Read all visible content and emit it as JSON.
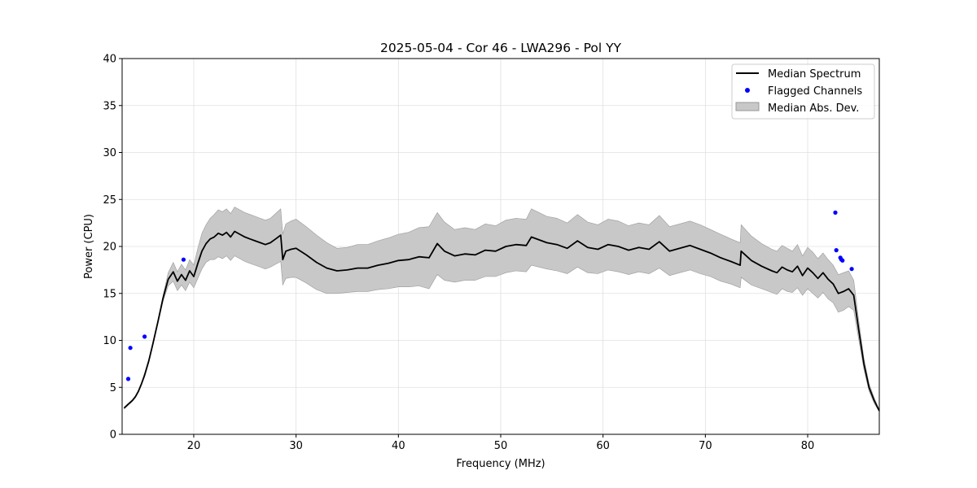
{
  "chart_data": {
    "type": "line",
    "title": "2025-05-04 - Cor 46 - LWA296 - Pol YY",
    "xlabel": "Frequency (MHz)",
    "ylabel": "Power (CPU)",
    "xlim": [
      13.0,
      87.0
    ],
    "ylim": [
      0,
      40
    ],
    "x_ticks": [
      20,
      30,
      40,
      50,
      60,
      70,
      80
    ],
    "x_tick_labels": [
      "20",
      "30",
      "40",
      "50",
      "60",
      "70",
      "80"
    ],
    "y_ticks": [
      0,
      5,
      10,
      15,
      20,
      25,
      30,
      35,
      40
    ],
    "y_tick_labels": [
      "0",
      "5",
      "10",
      "15",
      "20",
      "25",
      "30",
      "35",
      "40"
    ],
    "grid": true,
    "legend_position": "upper right",
    "colors": {
      "median": "#000000",
      "flagged": "#0000ff",
      "band": "#c8c8c8",
      "band_edge": "#999999",
      "grid": "#e0e0e0"
    },
    "series": [
      {
        "name": "Median Spectrum",
        "kind": "line",
        "x": [
          13.2,
          13.4,
          13.6,
          13.8,
          14.0,
          14.3,
          14.6,
          14.9,
          15.2,
          15.6,
          16.0,
          16.5,
          17.0,
          17.5,
          18.0,
          18.4,
          18.8,
          19.2,
          19.6,
          20.0,
          20.4,
          20.8,
          21.2,
          21.6,
          22.0,
          22.4,
          22.8,
          23.2,
          23.6,
          24.0,
          24.5,
          25.0,
          25.5,
          26.0,
          26.5,
          27.0,
          27.5,
          28.0,
          28.5,
          28.7,
          29.0,
          29.5,
          30.0,
          31.0,
          32.0,
          33.0,
          34.0,
          35.0,
          36.0,
          37.0,
          38.0,
          39.0,
          40.0,
          41.0,
          42.0,
          43.0,
          43.8,
          44.5,
          45.5,
          46.5,
          47.5,
          48.5,
          49.5,
          50.5,
          51.5,
          52.5,
          53.0,
          54.5,
          55.5,
          56.5,
          57.5,
          58.5,
          59.5,
          60.5,
          61.5,
          62.5,
          63.5,
          64.5,
          65.5,
          66.5,
          67.5,
          68.5,
          69.5,
          70.5,
          71.5,
          72.5,
          73.4,
          73.5,
          74.5,
          75.5,
          76.5,
          77.0,
          77.5,
          78.0,
          78.5,
          79.0,
          79.5,
          80.0,
          80.5,
          81.0,
          81.5,
          82.0,
          82.5,
          83.0,
          83.5,
          84.0,
          84.5,
          85.0,
          85.5,
          86.0,
          86.5,
          87.0
        ],
        "values": [
          2.8,
          3.0,
          3.2,
          3.4,
          3.6,
          4.0,
          4.6,
          5.4,
          6.3,
          7.8,
          9.6,
          12.0,
          14.5,
          16.5,
          17.3,
          16.3,
          17.0,
          16.4,
          17.4,
          16.8,
          18.2,
          19.5,
          20.3,
          20.8,
          21.0,
          21.4,
          21.2,
          21.5,
          21.0,
          21.6,
          21.3,
          21.0,
          20.8,
          20.6,
          20.4,
          20.2,
          20.4,
          20.8,
          21.2,
          18.6,
          19.5,
          19.7,
          19.8,
          19.1,
          18.3,
          17.7,
          17.4,
          17.5,
          17.7,
          17.7,
          18.0,
          18.2,
          18.5,
          18.6,
          18.9,
          18.8,
          20.3,
          19.5,
          19.0,
          19.2,
          19.1,
          19.6,
          19.5,
          20.0,
          20.2,
          20.1,
          21.0,
          20.4,
          20.2,
          19.8,
          20.6,
          19.9,
          19.7,
          20.2,
          20.0,
          19.6,
          19.9,
          19.7,
          20.5,
          19.5,
          19.8,
          20.1,
          19.7,
          19.3,
          18.8,
          18.4,
          18.0,
          19.5,
          18.5,
          17.9,
          17.4,
          17.2,
          17.8,
          17.5,
          17.3,
          17.9,
          16.9,
          17.7,
          17.2,
          16.6,
          17.2,
          16.5,
          16.0,
          15.0,
          15.2,
          15.5,
          14.8,
          11.0,
          7.5,
          5.0,
          3.6,
          2.5
        ]
      },
      {
        "name": "Flagged Channels",
        "kind": "scatter",
        "x": [
          13.6,
          13.8,
          15.2,
          19.0,
          82.7,
          82.8,
          83.2,
          83.3,
          83.4,
          84.3
        ],
        "values": [
          5.9,
          9.2,
          10.4,
          18.6,
          23.6,
          19.6,
          18.8,
          18.6,
          18.5,
          17.6
        ]
      },
      {
        "name": "Median Abs. Dev.",
        "kind": "band",
        "x": [
          13.2,
          13.4,
          13.6,
          13.8,
          14.0,
          14.3,
          14.6,
          14.9,
          15.2,
          15.6,
          16.0,
          16.5,
          17.0,
          17.5,
          18.0,
          18.4,
          18.8,
          19.2,
          19.6,
          20.0,
          20.4,
          20.8,
          21.2,
          21.6,
          22.0,
          22.4,
          22.8,
          23.2,
          23.6,
          24.0,
          24.5,
          25.0,
          25.5,
          26.0,
          26.5,
          27.0,
          27.5,
          28.0,
          28.5,
          28.7,
          29.0,
          29.5,
          30.0,
          31.0,
          32.0,
          33.0,
          34.0,
          35.0,
          36.0,
          37.0,
          38.0,
          39.0,
          40.0,
          41.0,
          42.0,
          43.0,
          43.8,
          44.5,
          45.5,
          46.5,
          47.5,
          48.5,
          49.5,
          50.5,
          51.5,
          52.5,
          53.0,
          54.5,
          55.5,
          56.5,
          57.5,
          58.5,
          59.5,
          60.5,
          61.5,
          62.5,
          63.5,
          64.5,
          65.5,
          66.5,
          67.5,
          68.5,
          69.5,
          70.5,
          71.5,
          72.5,
          73.4,
          73.5,
          74.5,
          75.5,
          76.5,
          77.0,
          77.5,
          78.0,
          78.5,
          79.0,
          79.5,
          80.0,
          80.5,
          81.0,
          81.5,
          82.0,
          82.5,
          83.0,
          83.5,
          84.0,
          84.5,
          85.0,
          85.5,
          86.0,
          86.5,
          87.0
        ],
        "lower": [
          2.7,
          2.9,
          3.1,
          3.3,
          3.5,
          3.9,
          4.5,
          5.3,
          6.1,
          7.6,
          9.4,
          11.8,
          14.2,
          15.8,
          16.3,
          15.3,
          15.9,
          15.3,
          16.2,
          15.6,
          16.6,
          17.6,
          18.3,
          18.6,
          18.6,
          18.9,
          18.7,
          19.0,
          18.5,
          19.0,
          18.7,
          18.4,
          18.2,
          18.0,
          17.8,
          17.6,
          17.8,
          18.1,
          18.4,
          15.9,
          16.6,
          16.7,
          16.7,
          16.1,
          15.4,
          15.0,
          15.0,
          15.1,
          15.2,
          15.2,
          15.4,
          15.5,
          15.7,
          15.7,
          15.8,
          15.5,
          17.0,
          16.4,
          16.2,
          16.4,
          16.4,
          16.8,
          16.8,
          17.2,
          17.4,
          17.3,
          18.0,
          17.6,
          17.4,
          17.1,
          17.8,
          17.2,
          17.1,
          17.5,
          17.3,
          17.0,
          17.3,
          17.1,
          17.7,
          16.9,
          17.2,
          17.5,
          17.1,
          16.8,
          16.3,
          16.0,
          15.6,
          16.7,
          15.9,
          15.5,
          15.1,
          14.9,
          15.5,
          15.2,
          15.1,
          15.6,
          14.8,
          15.5,
          15.0,
          14.5,
          15.1,
          14.4,
          14.0,
          13.0,
          13.2,
          13.6,
          13.2,
          10.0,
          6.9,
          4.6,
          3.3,
          2.4
        ],
        "upper": [
          2.9,
          3.1,
          3.3,
          3.5,
          3.7,
          4.1,
          4.7,
          5.5,
          6.5,
          8.0,
          9.8,
          12.2,
          14.8,
          17.2,
          18.3,
          17.3,
          18.1,
          17.5,
          18.6,
          18.0,
          19.8,
          21.4,
          22.3,
          23.0,
          23.4,
          23.9,
          23.7,
          24.0,
          23.5,
          24.2,
          23.9,
          23.6,
          23.4,
          23.2,
          23.0,
          22.8,
          23.0,
          23.5,
          24.0,
          21.3,
          22.4,
          22.7,
          22.9,
          22.1,
          21.2,
          20.4,
          19.8,
          19.9,
          20.2,
          20.2,
          20.6,
          20.9,
          21.3,
          21.5,
          22.0,
          22.1,
          23.6,
          22.6,
          21.8,
          22.0,
          21.8,
          22.4,
          22.2,
          22.8,
          23.0,
          22.9,
          24.0,
          23.2,
          23.0,
          22.5,
          23.4,
          22.6,
          22.3,
          22.9,
          22.7,
          22.2,
          22.5,
          22.3,
          23.3,
          22.1,
          22.4,
          22.7,
          22.3,
          21.8,
          21.3,
          20.8,
          20.4,
          22.3,
          21.1,
          20.3,
          19.7,
          19.5,
          20.1,
          19.8,
          19.5,
          20.2,
          19.0,
          19.9,
          19.4,
          18.7,
          19.3,
          18.6,
          18.0,
          17.0,
          17.2,
          17.4,
          16.4,
          12.0,
          8.1,
          5.4,
          3.9,
          2.6
        ]
      }
    ]
  }
}
